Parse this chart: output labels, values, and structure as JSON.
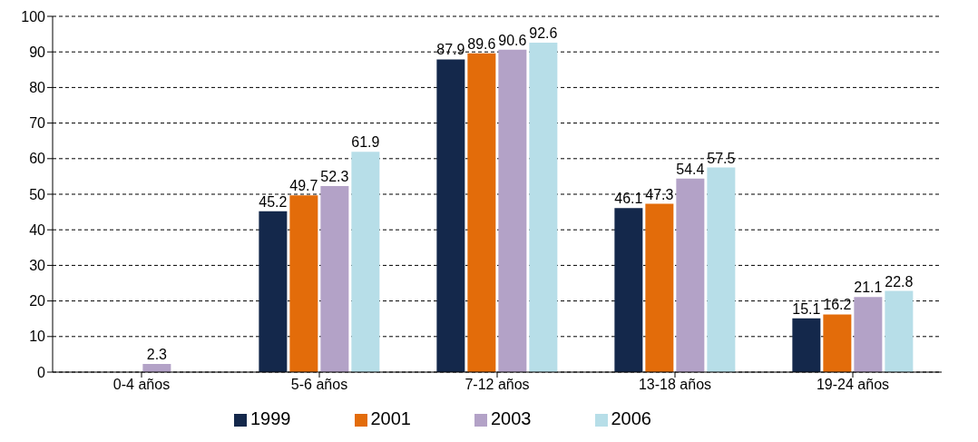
{
  "chart_data": {
    "type": "bar",
    "categories": [
      "0-4 años",
      "5-6 años",
      "7-12 años",
      "13-18 años",
      "19-24 años"
    ],
    "series": [
      {
        "name": "1999",
        "color": "#14284b",
        "values": [
          null,
          45.2,
          87.9,
          46.1,
          15.1
        ]
      },
      {
        "name": "2001",
        "color": "#e36c0a",
        "values": [
          null,
          49.7,
          89.6,
          47.3,
          16.2
        ]
      },
      {
        "name": "2003",
        "color": "#b3a2c7",
        "values": [
          2.3,
          52.3,
          90.6,
          54.4,
          21.1
        ]
      },
      {
        "name": "2006",
        "color": "#b7dee8",
        "values": [
          null,
          61.9,
          92.6,
          57.5,
          22.8
        ]
      }
    ],
    "ylim": [
      0,
      100
    ],
    "yticks": [
      0,
      10,
      20,
      30,
      40,
      50,
      60,
      70,
      80,
      90,
      100
    ],
    "grid": "y",
    "legend": "bottom",
    "data_labels": true
  }
}
